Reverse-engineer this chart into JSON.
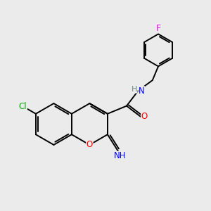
{
  "background_color": "#ebebeb",
  "atom_colors": {
    "C": "#000000",
    "H": "#6a8a8a",
    "N": "#0000ff",
    "O": "#ff0000",
    "F": "#ee00ee",
    "Cl": "#00aa00"
  },
  "bond_color": "#000000",
  "bond_width": 1.4,
  "figsize": [
    3.0,
    3.0
  ],
  "dpi": 100
}
